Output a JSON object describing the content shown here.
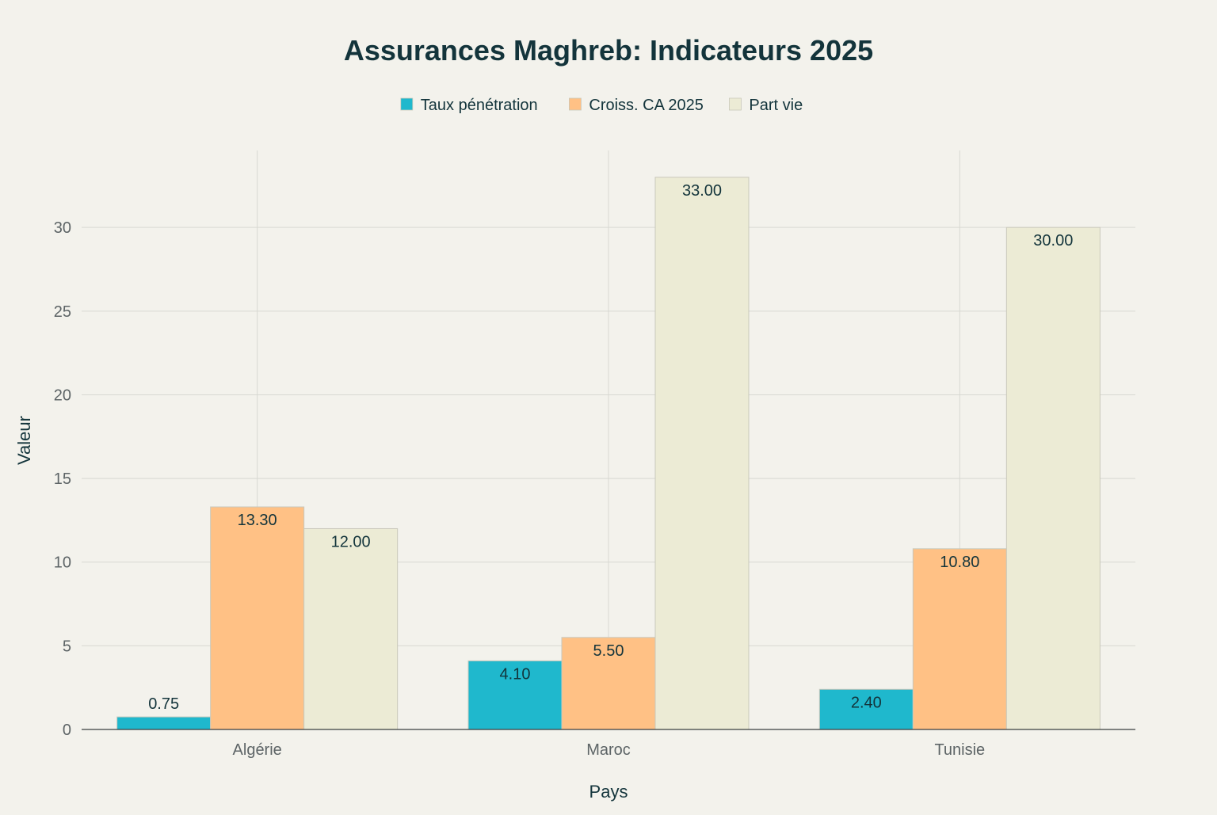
{
  "chart_data": {
    "type": "bar",
    "title": "Assurances Maghreb: Indicateurs 2025",
    "xlabel": "Pays",
    "ylabel": "Valeur",
    "categories": [
      "Algérie",
      "Maroc",
      "Tunisie"
    ],
    "series": [
      {
        "name": "Taux pénétration",
        "color": "#1fb8cd",
        "values": [
          0.75,
          4.1,
          2.4
        ],
        "labels": [
          "0.75",
          "4.10",
          "2.40"
        ]
      },
      {
        "name": "Croiss. CA 2025",
        "color": "#ffc185",
        "values": [
          13.3,
          5.5,
          10.8
        ],
        "labels": [
          "13.30",
          "5.50",
          "10.80"
        ]
      },
      {
        "name": "Part vie",
        "color": "#ecebd5",
        "values": [
          12.0,
          33.0,
          30.0
        ],
        "labels": [
          "12.00",
          "33.00",
          "30.00"
        ]
      }
    ],
    "ylim": [
      0,
      34.6
    ],
    "yticks": [
      0,
      5,
      10,
      15,
      20,
      25,
      30
    ],
    "ytick_labels": [
      "0",
      "5",
      "10",
      "15",
      "20",
      "25",
      "30"
    ],
    "grid": true,
    "legend_position": "top-center",
    "colors": {
      "background": "#f3f2ec",
      "grid": "#d8d8d2",
      "axis": "#3a3f40",
      "title": "#13343b",
      "tick_text": "#5d6466",
      "label_text": "#13343b"
    }
  }
}
